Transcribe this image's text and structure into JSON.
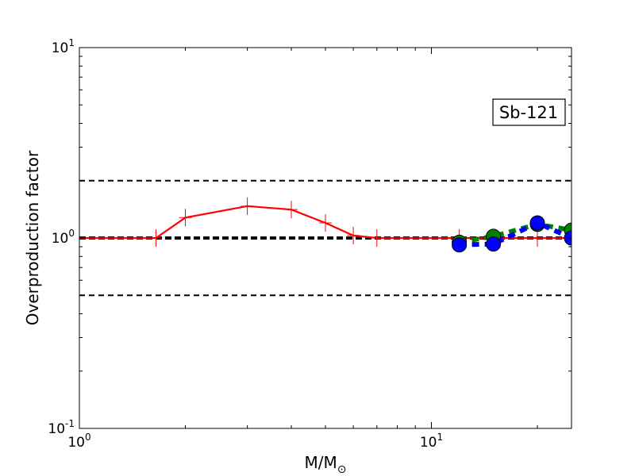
{
  "chart_data": {
    "type": "line",
    "title": "",
    "xlabel": "M/M",
    "xlabel_sub": "⊙",
    "ylabel": "Overproduction factor",
    "xscale": "log",
    "yscale": "log",
    "xlim": [
      1,
      25
    ],
    "ylim": [
      0.1,
      10
    ],
    "x_ticks": [
      {
        "base": "10",
        "exp": "0"
      },
      {
        "base": "10",
        "exp": "1"
      }
    ],
    "y_ticks": [
      {
        "base": "10",
        "exp": "-1"
      },
      {
        "base": "10",
        "exp": "0"
      },
      {
        "base": "10",
        "exp": "1"
      }
    ],
    "annotation": "Sb-121",
    "reference_lines": [
      {
        "y": 2.0,
        "style": "dashed",
        "color": "#000000"
      },
      {
        "y": 1.0,
        "style": "dashed-thick",
        "color": "#000000"
      },
      {
        "y": 0.5,
        "style": "dashed",
        "color": "#000000"
      }
    ],
    "series": [
      {
        "color": "#ff0000",
        "style": "solid",
        "marker": "plus",
        "x": [
          1,
          1.65,
          2,
          3,
          4,
          5,
          6,
          7,
          12,
          15,
          20,
          25
        ],
        "y": [
          1.0,
          1.0,
          1.28,
          1.47,
          1.41,
          1.2,
          1.03,
          1.0,
          1.0,
          1.0,
          1.0,
          1.0
        ]
      },
      {
        "color": "#008000",
        "style": "dashed",
        "marker": "circle",
        "x": [
          12,
          15,
          20,
          25
        ],
        "y": [
          0.95,
          1.02,
          1.18,
          1.1
        ]
      },
      {
        "color": "#0000ff",
        "style": "dashed",
        "marker": "circle",
        "x": [
          12,
          15,
          20,
          25
        ],
        "y": [
          0.92,
          0.93,
          1.2,
          1.0
        ]
      }
    ]
  }
}
